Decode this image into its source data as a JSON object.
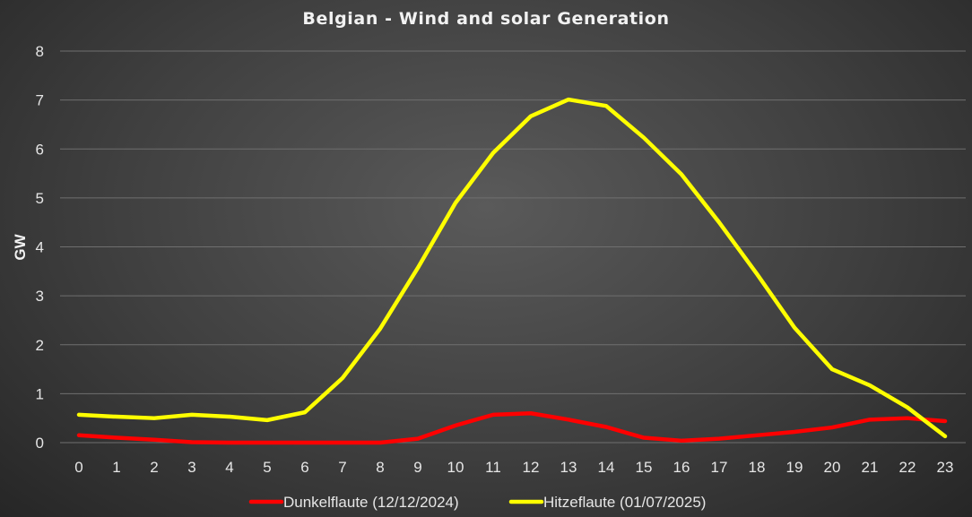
{
  "chart_data": {
    "type": "line",
    "title": "Belgian - Wind and solar Generation",
    "xlabel": "",
    "ylabel": "GW",
    "ylim": [
      0,
      8
    ],
    "yticks": [
      0,
      1,
      2,
      3,
      4,
      5,
      6,
      7,
      8
    ],
    "x": [
      0,
      1,
      2,
      3,
      4,
      5,
      6,
      7,
      8,
      9,
      10,
      11,
      12,
      13,
      14,
      15,
      16,
      17,
      18,
      19,
      20,
      21,
      22,
      23
    ],
    "grid": true,
    "legend_position": "bottom",
    "series": [
      {
        "name": "Dunkelflaute (12/12/2024)",
        "color": "#ff0000",
        "values": [
          0.15,
          0.1,
          0.06,
          0.01,
          0.0,
          0.0,
          0.0,
          0.0,
          0.0,
          0.08,
          0.35,
          0.57,
          0.6,
          0.47,
          0.32,
          0.1,
          0.04,
          0.08,
          0.15,
          0.22,
          0.31,
          0.47,
          0.5,
          0.44
        ]
      },
      {
        "name": "Hitzeflaute (01/07/2025)",
        "color": "#ffff00",
        "values": [
          0.57,
          0.53,
          0.5,
          0.57,
          0.53,
          0.46,
          0.62,
          1.32,
          2.33,
          3.57,
          4.9,
          5.92,
          6.67,
          7.01,
          6.88,
          6.23,
          5.48,
          4.5,
          3.45,
          2.35,
          1.5,
          1.17,
          0.72,
          0.13
        ]
      }
    ]
  }
}
